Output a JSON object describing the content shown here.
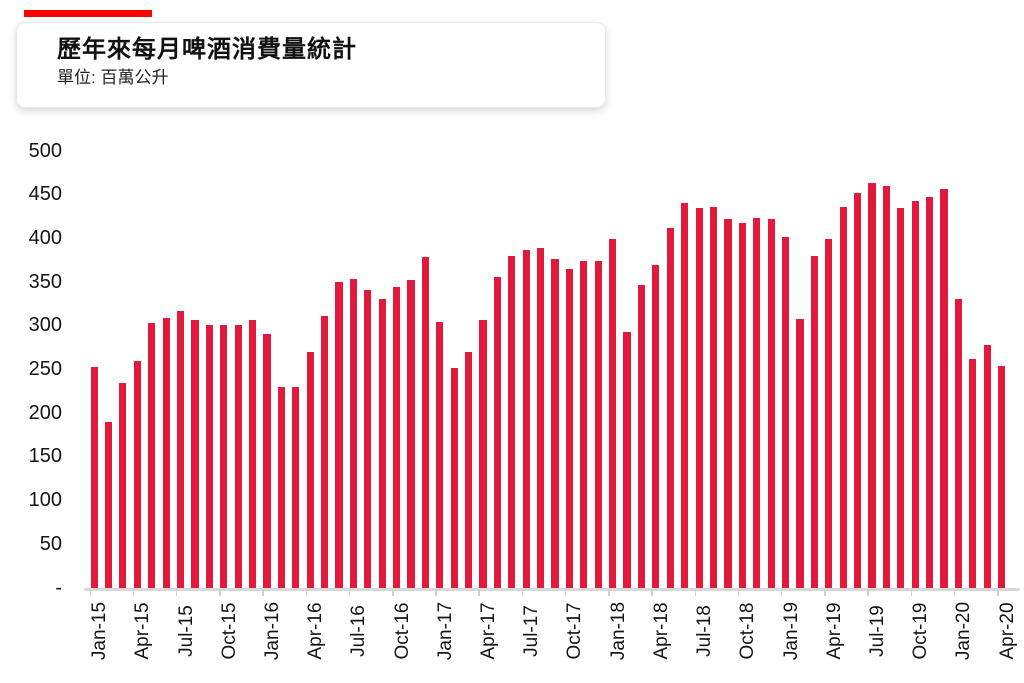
{
  "accent_color": "#fb0100",
  "bar_color": "#e11a3d",
  "axis_line_color": "#d8d8d8",
  "header": {
    "title": "歷年來每月啤酒消費量統計",
    "subtitle": "單位: 百萬公升"
  },
  "chart_data": {
    "type": "bar",
    "title": "歷年來每月啤酒消費量統計",
    "unit_label": "單位: 百萬公升",
    "x": [
      "Jan-15",
      "Feb-15",
      "Mar-15",
      "Apr-15",
      "May-15",
      "Jun-15",
      "Jul-15",
      "Aug-15",
      "Sep-15",
      "Oct-15",
      "Nov-15",
      "Dec-15",
      "Jan-16",
      "Feb-16",
      "Mar-16",
      "Apr-16",
      "May-16",
      "Jun-16",
      "Jul-16",
      "Aug-16",
      "Sep-16",
      "Oct-16",
      "Nov-16",
      "Dec-16",
      "Jan-17",
      "Feb-17",
      "Mar-17",
      "Apr-17",
      "May-17",
      "Jun-17",
      "Jul-17",
      "Aug-17",
      "Sep-17",
      "Oct-17",
      "Nov-17",
      "Dec-17",
      "Jan-18",
      "Feb-18",
      "Mar-18",
      "Apr-18",
      "May-18",
      "Jun-18",
      "Jul-18",
      "Aug-18",
      "Sep-18",
      "Oct-18",
      "Nov-18",
      "Dec-18",
      "Jan-19",
      "Feb-19",
      "Mar-19",
      "Apr-19",
      "May-19",
      "Jun-19",
      "Jul-19",
      "Aug-19",
      "Sep-19",
      "Oct-19",
      "Nov-19",
      "Dec-19",
      "Jan-20",
      "Feb-20",
      "Mar-20",
      "Apr-20"
    ],
    "values": [
      252,
      190,
      234,
      259,
      303,
      308,
      316,
      306,
      301,
      300,
      301,
      306,
      290,
      229,
      229,
      270,
      311,
      350,
      353,
      340,
      330,
      344,
      352,
      378,
      304,
      251,
      270,
      306,
      356,
      379,
      386,
      389,
      376,
      365,
      374,
      374,
      399,
      292,
      346,
      369,
      412,
      440,
      434,
      436,
      422,
      417,
      423,
      422,
      401,
      307,
      379,
      399,
      436,
      452,
      463,
      460,
      434,
      442,
      447,
      456,
      330,
      262,
      278,
      253
    ],
    "y_ticks": [
      500,
      450,
      400,
      350,
      300,
      250,
      200,
      150,
      100,
      50
    ],
    "y_zero_label": "-",
    "x_tick_labels": [
      "Jan-15",
      "Apr-15",
      "Jul-15",
      "Oct-15",
      "Jan-16",
      "Apr-16",
      "Jul-16",
      "Oct-16",
      "Jan-17",
      "Apr-17",
      "Jul-17",
      "Oct-17",
      "Jan-18",
      "Apr-18",
      "Jul-18",
      "Oct-18",
      "Jan-19",
      "Apr-19",
      "Jul-19",
      "Oct-19",
      "Jan-20",
      "Apr-20"
    ],
    "x_tick_step": 3,
    "ylim": [
      0,
      500
    ],
    "xlabel": "",
    "ylabel": "",
    "grid": false,
    "legend": false
  }
}
